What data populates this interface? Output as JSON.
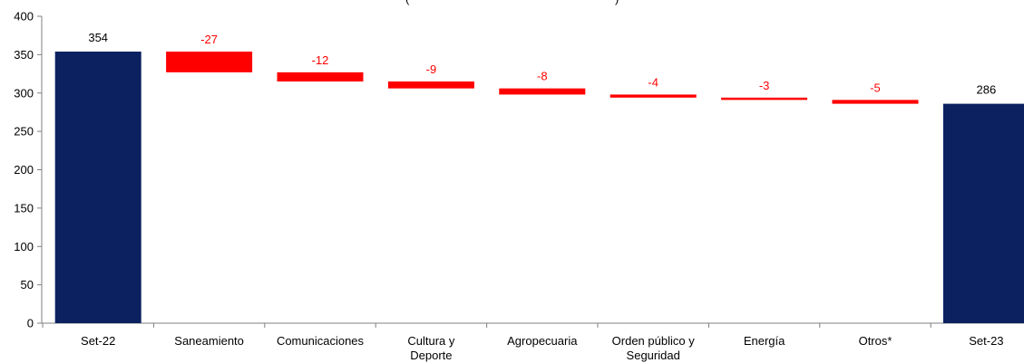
{
  "chart_data": {
    "type": "bar",
    "subtype": "waterfall",
    "title": "",
    "xlabel": "",
    "ylabel": "",
    "ylim": [
      0,
      400
    ],
    "yticks": [
      0,
      50,
      100,
      150,
      200,
      250,
      300,
      350,
      400
    ],
    "grid": false,
    "legend": "none",
    "categories": [
      {
        "label": [
          "Set-22"
        ],
        "kind": "total",
        "value": 354,
        "label_text": "354"
      },
      {
        "label": [
          "Saneamiento"
        ],
        "kind": "delta",
        "value": -27,
        "label_text": "-27"
      },
      {
        "label": [
          "Comunicaciones"
        ],
        "kind": "delta",
        "value": -12,
        "label_text": "-12"
      },
      {
        "label": [
          "Cultura y",
          "Deporte"
        ],
        "kind": "delta",
        "value": -9,
        "label_text": "-9"
      },
      {
        "label": [
          "Agropecuaria"
        ],
        "kind": "delta",
        "value": -8,
        "label_text": "-8"
      },
      {
        "label": [
          "Orden público y",
          "Seguridad"
        ],
        "kind": "delta",
        "value": -4,
        "label_text": "-4"
      },
      {
        "label": [
          "Energía"
        ],
        "kind": "delta",
        "value": -3,
        "label_text": "-3"
      },
      {
        "label": [
          "Otros*"
        ],
        "kind": "delta",
        "value": -5,
        "label_text": "-5"
      },
      {
        "label": [
          "Set-23"
        ],
        "kind": "total",
        "value": 286,
        "label_text": "286"
      }
    ],
    "colors": {
      "total": "#0b2160",
      "decrease": "#ff0000",
      "axis": "#808080",
      "text": "#000000",
      "delta_label": "#ff0000"
    },
    "top_fragments": [
      "(",
      ")"
    ]
  }
}
